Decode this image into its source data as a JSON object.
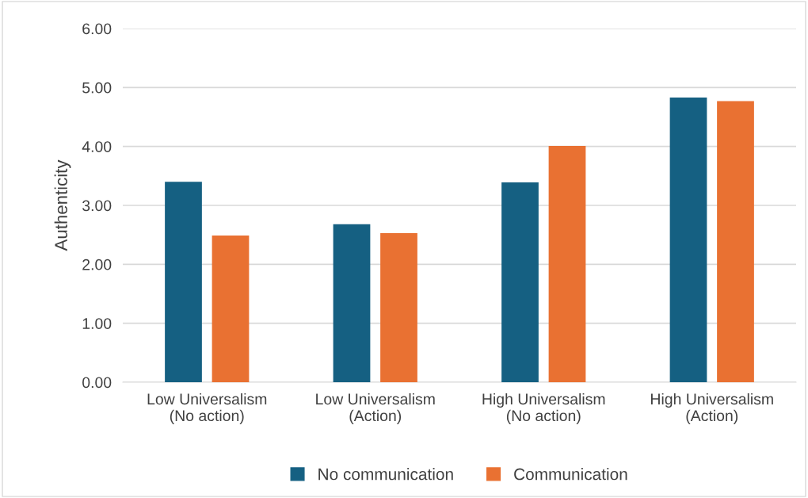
{
  "chart_data": {
    "type": "bar",
    "ylabel": "Authenticity",
    "categories": [
      "Low Universalism\n(No action)",
      "Low Universalism\n(Action)",
      "High Universalism\n(No action)",
      "High Universalism\n(Action)"
    ],
    "series": [
      {
        "name": "No communication",
        "color": "#156082",
        "values": [
          3.4,
          2.68,
          3.39,
          4.83
        ]
      },
      {
        "name": "Communication",
        "color": "#e97132",
        "values": [
          2.49,
          2.53,
          4.01,
          4.77
        ]
      }
    ],
    "ylim": [
      0,
      6
    ],
    "yticks": [
      {
        "value": 0,
        "label": "0.00"
      },
      {
        "value": 1,
        "label": "1.00"
      },
      {
        "value": 2,
        "label": "2.00"
      },
      {
        "value": 3,
        "label": "3.00"
      },
      {
        "value": 4,
        "label": "4.00"
      },
      {
        "value": 5,
        "label": "5.00"
      },
      {
        "value": 6,
        "label": "6.00"
      }
    ],
    "grid": "y",
    "legend": "bottom"
  }
}
